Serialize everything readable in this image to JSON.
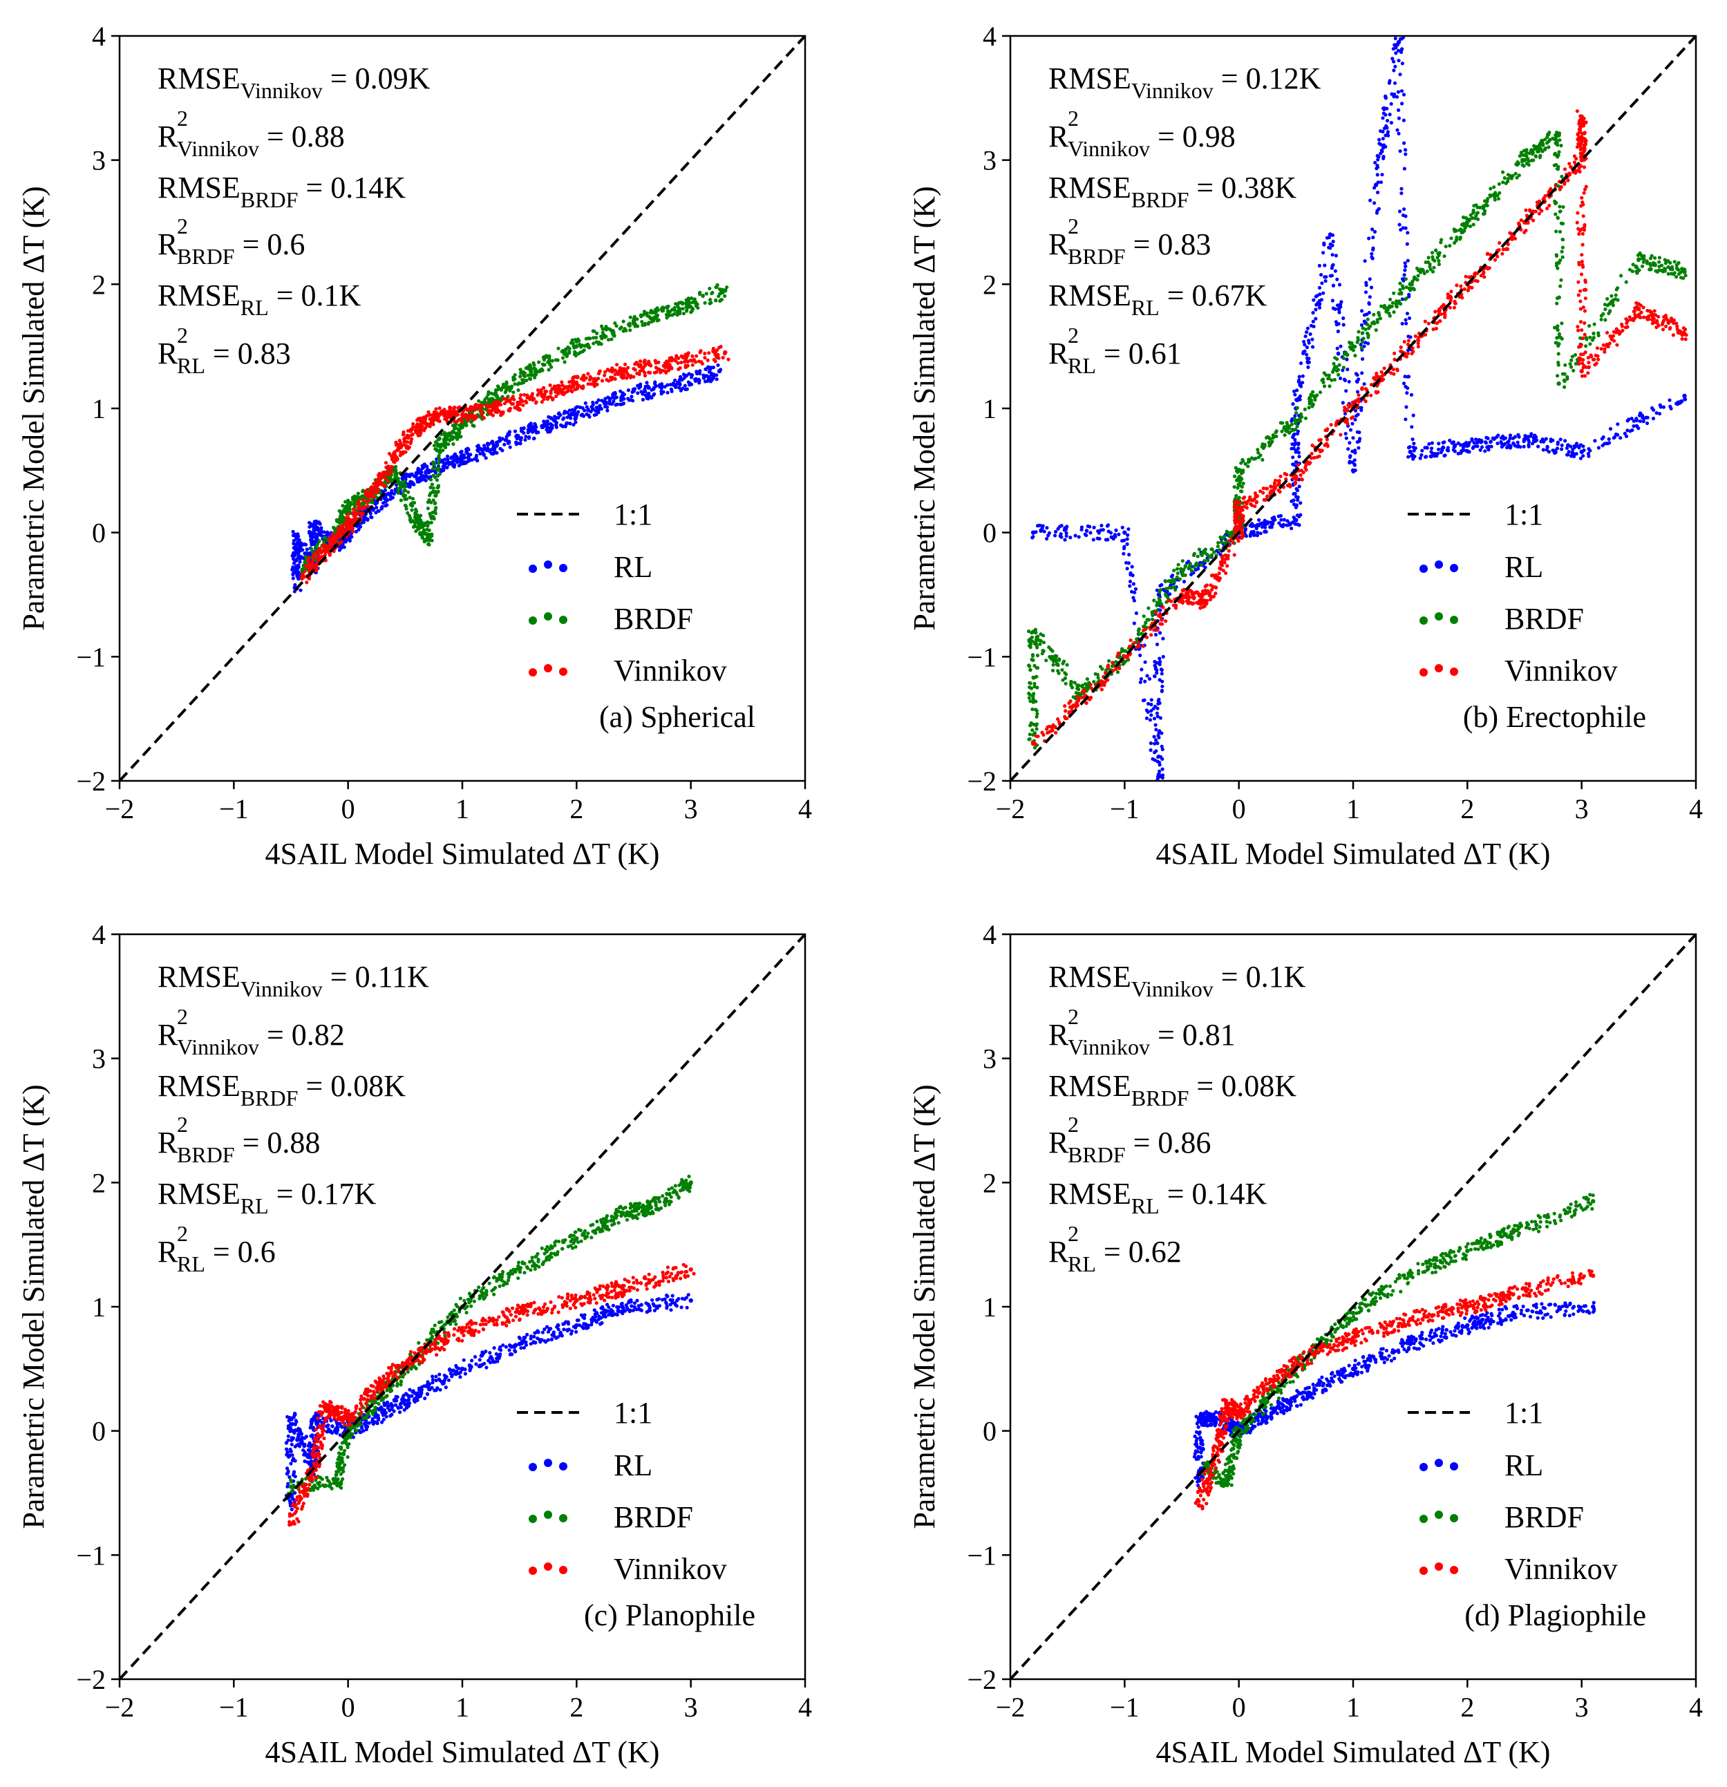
{
  "chart_data": [
    {
      "type": "scatter",
      "panel_label": "(a) Spherical",
      "xlabel": "4SAIL Model Simulated ΔT (K)",
      "ylabel": "Parametric Model Simulated ΔT (K)",
      "xlim": [
        -2,
        4
      ],
      "ylim": [
        -2,
        4
      ],
      "xticks": [
        -2,
        -1,
        0,
        1,
        2,
        3,
        4
      ],
      "yticks": [
        -2,
        -1,
        0,
        1,
        2,
        3,
        4
      ],
      "xtick_labels": [
        "−2",
        "−1",
        "0",
        "1",
        "2",
        "3",
        "4"
      ],
      "ytick_labels": [
        "−2",
        "−1",
        "0",
        "1",
        "2",
        "3",
        "4"
      ],
      "stats": [
        {
          "main": "RMSE",
          "sup": "",
          "sub": "Vinnikov",
          "value": " = 0.09K"
        },
        {
          "main": "R",
          "sup": "2",
          "sub": "Vinnikov",
          "value": " = 0.88"
        },
        {
          "main": "RMSE",
          "sup": "",
          "sub": "BRDF",
          "value": " = 0.14K"
        },
        {
          "main": "R",
          "sup": "2",
          "sub": "BRDF",
          "value": " = 0.6"
        },
        {
          "main": "RMSE",
          "sup": "",
          "sub": "RL",
          "value": " = 0.1K"
        },
        {
          "main": "R",
          "sup": "2",
          "sub": "RL",
          "value": " = 0.83"
        }
      ],
      "reference_line": {
        "name": "1:1",
        "style": "dashed",
        "color": "#000000"
      },
      "series": [
        {
          "name": "RL",
          "color": "#0000ff",
          "points": [
            [
              -0.45,
              -0.45
            ],
            [
              -0.45,
              -0.05
            ],
            [
              -0.3,
              -0.3
            ],
            [
              -0.3,
              0.05
            ],
            [
              -0.1,
              -0.1
            ],
            [
              0.0,
              0.0
            ],
            [
              0.2,
              0.2
            ],
            [
              0.5,
              0.4
            ],
            [
              0.7,
              0.5
            ],
            [
              1.0,
              0.6
            ],
            [
              1.3,
              0.7
            ],
            [
              1.7,
              0.85
            ],
            [
              2.0,
              0.95
            ],
            [
              2.4,
              1.1
            ],
            [
              2.9,
              1.2
            ],
            [
              3.25,
              1.3
            ]
          ]
        },
        {
          "name": "BRDF",
          "color": "#008000",
          "points": [
            [
              -0.4,
              -0.3
            ],
            [
              -0.1,
              0.0
            ],
            [
              0.0,
              0.2
            ],
            [
              0.2,
              0.3
            ],
            [
              0.4,
              0.5
            ],
            [
              0.6,
              0.1
            ],
            [
              0.7,
              -0.05
            ],
            [
              0.8,
              0.7
            ],
            [
              1.0,
              0.85
            ],
            [
              1.3,
              1.1
            ],
            [
              1.6,
              1.3
            ],
            [
              2.0,
              1.5
            ],
            [
              2.5,
              1.7
            ],
            [
              2.9,
              1.8
            ],
            [
              3.3,
              1.95
            ]
          ]
        },
        {
          "name": "Vinnikov",
          "color": "#ff0000",
          "points": [
            [
              -0.4,
              -0.35
            ],
            [
              -0.2,
              -0.15
            ],
            [
              0.0,
              0.05
            ],
            [
              0.2,
              0.3
            ],
            [
              0.4,
              0.6
            ],
            [
              0.6,
              0.85
            ],
            [
              0.8,
              0.95
            ],
            [
              1.0,
              0.95
            ],
            [
              1.3,
              1.0
            ],
            [
              1.7,
              1.1
            ],
            [
              2.0,
              1.2
            ],
            [
              2.4,
              1.3
            ],
            [
              2.8,
              1.35
            ],
            [
              3.3,
              1.45
            ]
          ]
        }
      ],
      "legend": [
        "1:1",
        "RL",
        "BRDF",
        "Vinnikov"
      ],
      "legend_position": "lower-right",
      "grid": false
    },
    {
      "type": "scatter",
      "panel_label": "(b) Erectophile",
      "xlabel": "4SAIL Model Simulated ΔT (K)",
      "ylabel": "Parametric Model Simulated ΔT (K)",
      "xlim": [
        -2,
        4
      ],
      "ylim": [
        -2,
        4
      ],
      "xticks": [
        -2,
        -1,
        0,
        1,
        2,
        3,
        4
      ],
      "yticks": [
        -2,
        -1,
        0,
        1,
        2,
        3,
        4
      ],
      "xtick_labels": [
        "−2",
        "−1",
        "0",
        "1",
        "2",
        "3",
        "4"
      ],
      "ytick_labels": [
        "−2",
        "−1",
        "0",
        "1",
        "2",
        "3",
        "4"
      ],
      "stats": [
        {
          "main": "RMSE",
          "sup": "",
          "sub": "Vinnikov",
          "value": " = 0.12K"
        },
        {
          "main": "R",
          "sup": "2",
          "sub": "Vinnikov",
          "value": " = 0.98"
        },
        {
          "main": "RMSE",
          "sup": "",
          "sub": "BRDF",
          "value": " = 0.38K"
        },
        {
          "main": "R",
          "sup": "2",
          "sub": "BRDF",
          "value": " = 0.83"
        },
        {
          "main": "RMSE",
          "sup": "",
          "sub": "RL",
          "value": " = 0.67K"
        },
        {
          "main": "R",
          "sup": "2",
          "sub": "RL",
          "value": " = 0.61"
        }
      ],
      "reference_line": {
        "name": "1:1",
        "style": "dashed",
        "color": "#000000"
      },
      "series": [
        {
          "name": "RL",
          "color": "#0000ff",
          "points": [
            [
              -1.8,
              0.0
            ],
            [
              -1.0,
              0.0
            ],
            [
              -0.7,
              -1.95
            ],
            [
              -0.7,
              -0.5
            ],
            [
              0.0,
              0.0
            ],
            [
              0.5,
              0.1
            ],
            [
              0.5,
              1.0
            ],
            [
              0.8,
              2.4
            ],
            [
              1.0,
              0.5
            ],
            [
              1.2,
              2.8
            ],
            [
              1.4,
              3.95
            ],
            [
              1.5,
              0.65
            ],
            [
              2.0,
              0.7
            ],
            [
              2.5,
              0.75
            ],
            [
              3.0,
              0.65
            ],
            [
              3.9,
              1.1
            ]
          ]
        },
        {
          "name": "BRDF",
          "color": "#008000",
          "points": [
            [
              -1.8,
              -1.7
            ],
            [
              -1.8,
              -0.8
            ],
            [
              -1.4,
              -1.3
            ],
            [
              -1.0,
              -1.0
            ],
            [
              -0.5,
              -0.3
            ],
            [
              0.0,
              0.0
            ],
            [
              0.0,
              0.5
            ],
            [
              0.5,
              0.9
            ],
            [
              1.0,
              1.5
            ],
            [
              1.5,
              2.0
            ],
            [
              2.0,
              2.5
            ],
            [
              2.5,
              3.0
            ],
            [
              2.8,
              3.2
            ],
            [
              2.8,
              1.2
            ],
            [
              3.5,
              2.2
            ],
            [
              3.9,
              2.1
            ]
          ]
        },
        {
          "name": "Vinnikov",
          "color": "#ff0000",
          "points": [
            [
              -1.8,
              -1.7
            ],
            [
              -1.2,
              -1.2
            ],
            [
              -0.5,
              -0.5
            ],
            [
              -0.3,
              -0.55
            ],
            [
              0.0,
              0.0
            ],
            [
              0.0,
              0.2
            ],
            [
              0.5,
              0.45
            ],
            [
              1.0,
              1.0
            ],
            [
              1.5,
              1.5
            ],
            [
              2.0,
              2.0
            ],
            [
              2.5,
              2.5
            ],
            [
              3.0,
              3.0
            ],
            [
              3.0,
              3.35
            ],
            [
              3.0,
              1.3
            ],
            [
              3.5,
              1.8
            ],
            [
              3.9,
              1.6
            ]
          ]
        }
      ],
      "legend": [
        "1:1",
        "RL",
        "BRDF",
        "Vinnikov"
      ],
      "legend_position": "lower-right",
      "grid": false
    },
    {
      "type": "scatter",
      "panel_label": "(c) Planophile",
      "xlabel": "4SAIL Model Simulated ΔT (K)",
      "ylabel": "Parametric Model Simulated ΔT (K)",
      "xlim": [
        -2,
        4
      ],
      "ylim": [
        -2,
        4
      ],
      "xticks": [
        -2,
        -1,
        0,
        1,
        2,
        3,
        4
      ],
      "yticks": [
        -2,
        -1,
        0,
        1,
        2,
        3,
        4
      ],
      "xtick_labels": [
        "−2",
        "−1",
        "0",
        "1",
        "2",
        "3",
        "4"
      ],
      "ytick_labels": [
        "−2",
        "−1",
        "0",
        "1",
        "2",
        "3",
        "4"
      ],
      "stats": [
        {
          "main": "RMSE",
          "sup": "",
          "sub": "Vinnikov",
          "value": " = 0.11K"
        },
        {
          "main": "R",
          "sup": "2",
          "sub": "Vinnikov",
          "value": " = 0.82"
        },
        {
          "main": "RMSE",
          "sup": "",
          "sub": "BRDF",
          "value": " = 0.08K"
        },
        {
          "main": "R",
          "sup": "2",
          "sub": "BRDF",
          "value": " = 0.88"
        },
        {
          "main": "RMSE",
          "sup": "",
          "sub": "RL",
          "value": " = 0.17K"
        },
        {
          "main": "R",
          "sup": "2",
          "sub": "RL",
          "value": " = 0.6"
        }
      ],
      "reference_line": {
        "name": "1:1",
        "style": "dashed",
        "color": "#000000"
      },
      "series": [
        {
          "name": "RL",
          "color": "#0000ff",
          "points": [
            [
              -0.5,
              -0.6
            ],
            [
              -0.5,
              0.1
            ],
            [
              -0.3,
              -0.3
            ],
            [
              -0.3,
              0.1
            ],
            [
              0.0,
              0.0
            ],
            [
              0.3,
              0.15
            ],
            [
              0.6,
              0.3
            ],
            [
              1.0,
              0.5
            ],
            [
              1.5,
              0.7
            ],
            [
              2.0,
              0.85
            ],
            [
              2.4,
              1.0
            ],
            [
              3.0,
              1.05
            ]
          ]
        },
        {
          "name": "BRDF",
          "color": "#008000",
          "points": [
            [
              -0.5,
              -0.45
            ],
            [
              -0.1,
              -0.4
            ],
            [
              0.0,
              0.0
            ],
            [
              0.3,
              0.3
            ],
            [
              0.6,
              0.6
            ],
            [
              1.0,
              1.0
            ],
            [
              1.5,
              1.3
            ],
            [
              2.0,
              1.55
            ],
            [
              2.4,
              1.75
            ],
            [
              2.65,
              1.8
            ],
            [
              3.0,
              2.0
            ]
          ]
        },
        {
          "name": "Vinnikov",
          "color": "#ff0000",
          "points": [
            [
              -0.5,
              -0.75
            ],
            [
              -0.3,
              -0.3
            ],
            [
              -0.2,
              0.2
            ],
            [
              0.0,
              0.1
            ],
            [
              0.3,
              0.4
            ],
            [
              0.6,
              0.6
            ],
            [
              1.0,
              0.8
            ],
            [
              1.5,
              0.95
            ],
            [
              2.0,
              1.05
            ],
            [
              2.4,
              1.15
            ],
            [
              3.0,
              1.3
            ]
          ]
        }
      ],
      "legend": [
        "1:1",
        "RL",
        "BRDF",
        "Vinnikov"
      ],
      "legend_position": "lower-right",
      "grid": false
    },
    {
      "type": "scatter",
      "panel_label": "(d) Plagiophile",
      "xlabel": "4SAIL Model Simulated ΔT (K)",
      "ylabel": "Parametric Model Simulated ΔT (K)",
      "xlim": [
        -2,
        4
      ],
      "ylim": [
        -2,
        4
      ],
      "xticks": [
        -2,
        -1,
        0,
        1,
        2,
        3,
        4
      ],
      "yticks": [
        -2,
        -1,
        0,
        1,
        2,
        3,
        4
      ],
      "xtick_labels": [
        "−2",
        "−1",
        "0",
        "1",
        "2",
        "3",
        "4"
      ],
      "ytick_labels": [
        "−2",
        "−1",
        "0",
        "1",
        "2",
        "3",
        "4"
      ],
      "stats": [
        {
          "main": "RMSE",
          "sup": "",
          "sub": "Vinnikov",
          "value": " = 0.1K"
        },
        {
          "main": "R",
          "sup": "2",
          "sub": "Vinnikov",
          "value": " = 0.81"
        },
        {
          "main": "RMSE",
          "sup": "",
          "sub": "BRDF",
          "value": " = 0.08K"
        },
        {
          "main": "R",
          "sup": "2",
          "sub": "BRDF",
          "value": " = 0.86"
        },
        {
          "main": "RMSE",
          "sup": "",
          "sub": "RL",
          "value": " = 0.14K"
        },
        {
          "main": "R",
          "sup": "2",
          "sub": "RL",
          "value": " = 0.62"
        }
      ],
      "reference_line": {
        "name": "1:1",
        "style": "dashed",
        "color": "#000000"
      },
      "series": [
        {
          "name": "RL",
          "color": "#0000ff",
          "points": [
            [
              -0.35,
              -0.4
            ],
            [
              -0.35,
              0.1
            ],
            [
              -0.2,
              0.1
            ],
            [
              0.0,
              0.0
            ],
            [
              0.3,
              0.15
            ],
            [
              0.6,
              0.3
            ],
            [
              1.0,
              0.5
            ],
            [
              1.5,
              0.7
            ],
            [
              2.0,
              0.85
            ],
            [
              2.4,
              0.95
            ],
            [
              3.1,
              1.0
            ]
          ]
        },
        {
          "name": "BRDF",
          "color": "#008000",
          "points": [
            [
              -0.3,
              -0.3
            ],
            [
              -0.1,
              -0.4
            ],
            [
              0.0,
              0.0
            ],
            [
              0.3,
              0.3
            ],
            [
              0.6,
              0.6
            ],
            [
              1.0,
              0.95
            ],
            [
              1.5,
              1.25
            ],
            [
              2.0,
              1.45
            ],
            [
              2.4,
              1.6
            ],
            [
              3.1,
              1.85
            ]
          ]
        },
        {
          "name": "Vinnikov",
          "color": "#ff0000",
          "points": [
            [
              -0.35,
              -0.6
            ],
            [
              -0.2,
              -0.2
            ],
            [
              -0.1,
              0.2
            ],
            [
              0.0,
              0.15
            ],
            [
              0.3,
              0.4
            ],
            [
              0.6,
              0.6
            ],
            [
              1.0,
              0.75
            ],
            [
              1.5,
              0.9
            ],
            [
              2.0,
              1.0
            ],
            [
              2.4,
              1.1
            ],
            [
              3.1,
              1.25
            ]
          ]
        }
      ],
      "legend": [
        "1:1",
        "RL",
        "BRDF",
        "Vinnikov"
      ],
      "legend_position": "lower-right",
      "grid": false
    }
  ]
}
